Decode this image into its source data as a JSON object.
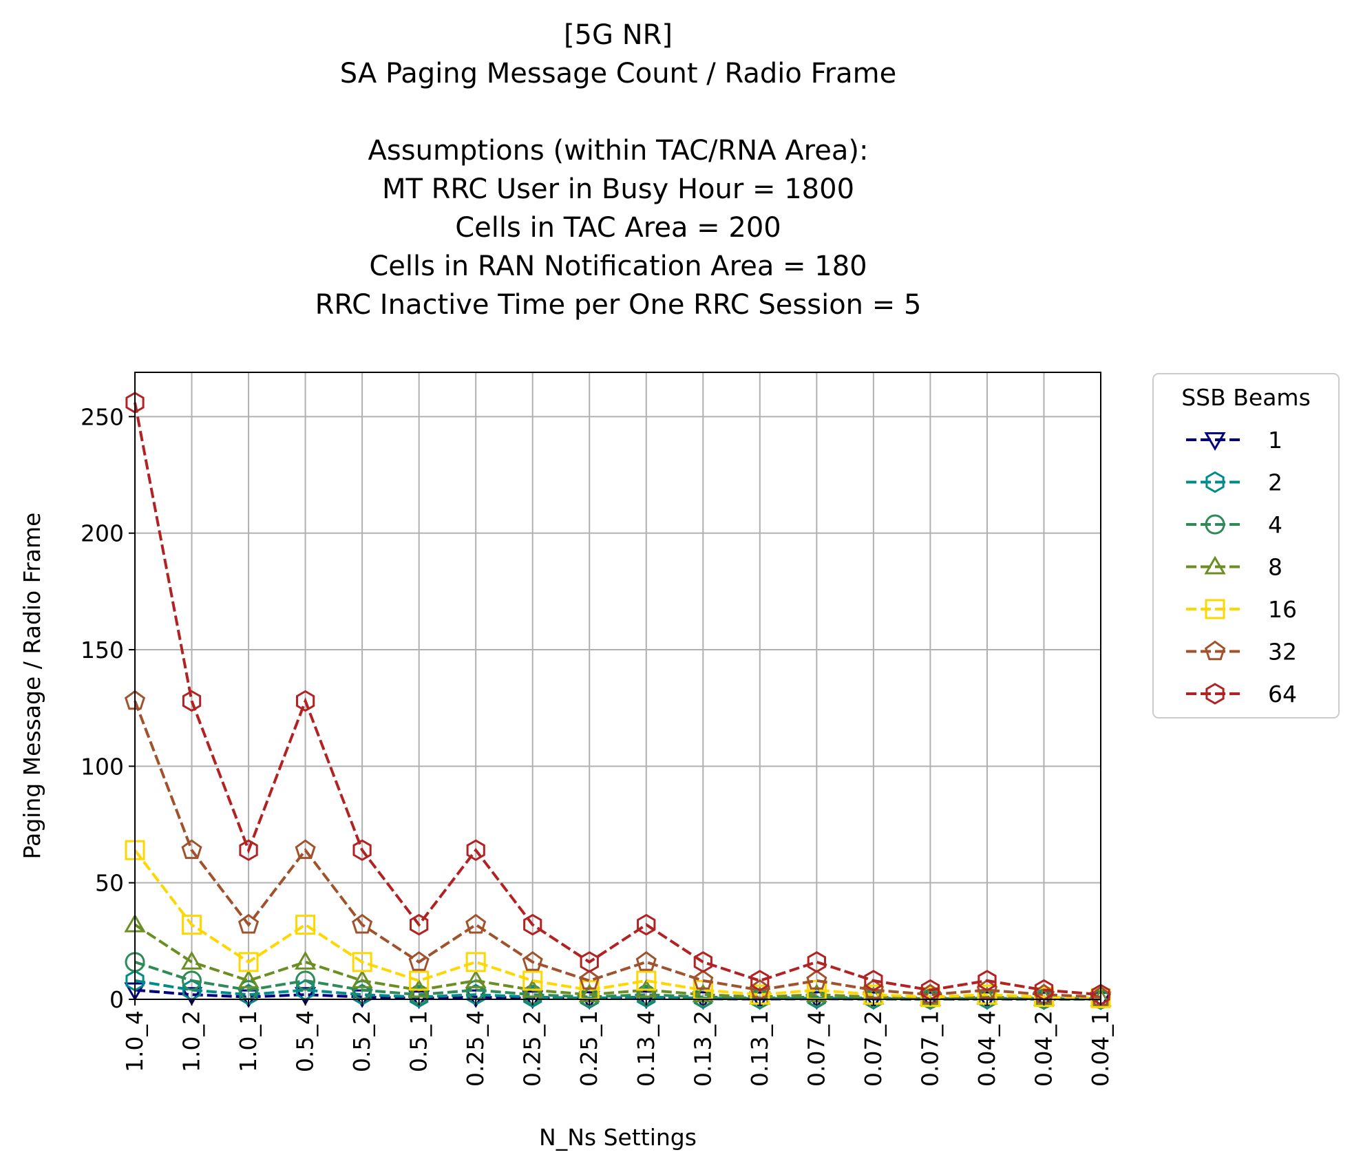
{
  "chart_data": {
    "type": "line",
    "title_lines": [
      "[5G NR]",
      "SA Paging Message Count / Radio Frame",
      "",
      "Assumptions (within TAC/RNA Area):",
      "MT RRC User in Busy Hour = 1800",
      "Cells in TAC Area = 200",
      "Cells in RAN Notification Area = 180",
      "RRC Inactive Time per One RRC Session = 5"
    ],
    "xlabel": "N_Ns Settings",
    "ylabel": "Paging Message / Radio Frame",
    "categories": [
      "1.0_4",
      "1.0_2",
      "1.0_1",
      "0.5_4",
      "0.5_2",
      "0.5_1",
      "0.25_4",
      "0.25_2",
      "0.25_1",
      "0.13_4",
      "0.13_2",
      "0.13_1",
      "0.07_4",
      "0.07_2",
      "0.07_1",
      "0.04_4",
      "0.04_2",
      "0.04_1"
    ],
    "ylim": [
      0,
      269
    ],
    "yticks": [
      0,
      50,
      100,
      150,
      200,
      250
    ],
    "grid": true,
    "legend": {
      "title": "SSB Beams",
      "placement": "outside-right"
    },
    "series": [
      {
        "name": "1",
        "color": "#000080",
        "marker": "triangle-down",
        "values": [
          4,
          2,
          1,
          2,
          1,
          0.5,
          1,
          0.5,
          0.25,
          0.5,
          0.25,
          0.13,
          0.25,
          0.13,
          0.06,
          0.13,
          0.06,
          0.03
        ]
      },
      {
        "name": "2",
        "color": "#008B8B",
        "marker": "hexagon",
        "values": [
          8,
          4,
          2,
          4,
          2,
          1,
          2,
          1,
          0.5,
          1,
          0.5,
          0.25,
          0.5,
          0.25,
          0.13,
          0.25,
          0.13,
          0.06
        ]
      },
      {
        "name": "4",
        "color": "#2E8B57",
        "marker": "circle",
        "values": [
          16,
          8,
          4,
          8,
          4,
          2,
          4,
          2,
          1,
          2,
          1,
          0.5,
          1,
          0.5,
          0.25,
          0.5,
          0.25,
          0.13
        ]
      },
      {
        "name": "8",
        "color": "#6B8E23",
        "marker": "triangle-up",
        "values": [
          32,
          16,
          8,
          16,
          8,
          4,
          8,
          4,
          2,
          4,
          2,
          1,
          2,
          1,
          0.5,
          1,
          0.5,
          0.25
        ]
      },
      {
        "name": "16",
        "color": "#FFD700",
        "marker": "square",
        "values": [
          64,
          32,
          16,
          32,
          16,
          8,
          16,
          8,
          4,
          8,
          4,
          2,
          4,
          2,
          1,
          2,
          1,
          0.5
        ]
      },
      {
        "name": "32",
        "color": "#A0522D",
        "marker": "pentagon",
        "values": [
          128,
          64,
          32,
          64,
          32,
          16,
          32,
          16,
          8,
          16,
          8,
          4,
          8,
          4,
          2,
          4,
          2,
          1
        ]
      },
      {
        "name": "64",
        "color": "#B22222",
        "marker": "hexagon",
        "values": [
          256,
          128,
          64,
          128,
          64,
          32,
          64,
          32,
          16,
          32,
          16,
          8,
          16,
          8,
          4,
          8,
          4,
          2
        ]
      }
    ]
  }
}
